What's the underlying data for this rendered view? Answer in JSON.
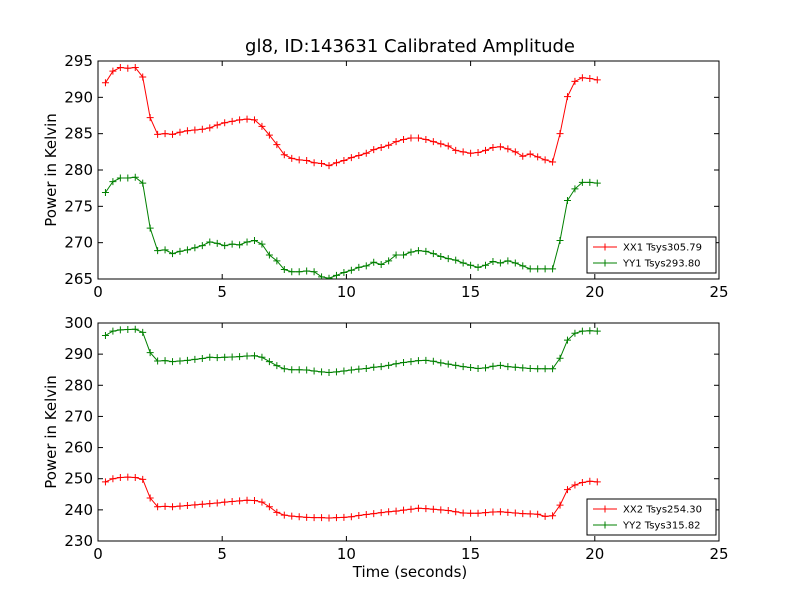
{
  "figure": {
    "title": "gl8, ID:143631 Calibrated Amplitude",
    "xlabel": "Time (seconds)"
  },
  "colors": {
    "red": "#ff0000",
    "green": "#008000"
  },
  "chart_data": [
    {
      "type": "line",
      "title": "gl8, ID:143631 Calibrated Amplitude",
      "xlabel": "",
      "ylabel": "Power in Kelvin",
      "xlim": [
        0,
        25
      ],
      "ylim": [
        265,
        295
      ],
      "xticks": [
        0,
        5,
        10,
        15,
        20,
        25
      ],
      "yticks": [
        265,
        270,
        275,
        280,
        285,
        290,
        295
      ],
      "grid": false,
      "legend_placement": "lower-right",
      "x": [
        0.3,
        0.6,
        0.9,
        1.2,
        1.5,
        1.8,
        2.1,
        2.4,
        2.7,
        3.0,
        3.3,
        3.6,
        3.9,
        4.2,
        4.5,
        4.8,
        5.1,
        5.4,
        5.7,
        6.0,
        6.3,
        6.6,
        6.9,
        7.2,
        7.5,
        7.8,
        8.1,
        8.4,
        8.7,
        9.0,
        9.3,
        9.6,
        9.9,
        10.2,
        10.5,
        10.8,
        11.1,
        11.4,
        11.7,
        12.0,
        12.3,
        12.6,
        12.9,
        13.2,
        13.5,
        13.8,
        14.1,
        14.4,
        14.7,
        15.0,
        15.3,
        15.6,
        15.9,
        16.2,
        16.5,
        16.8,
        17.1,
        17.4,
        17.7,
        18.0,
        18.3,
        18.6,
        18.9,
        19.2,
        19.5,
        19.8,
        20.1
      ],
      "series": [
        {
          "name": "XX1 Tsys305.79",
          "color": "#ff0000",
          "values": [
            292.0,
            293.6,
            294.1,
            294.0,
            294.1,
            292.8,
            287.2,
            284.9,
            285.0,
            284.9,
            285.2,
            285.4,
            285.5,
            285.6,
            285.8,
            286.2,
            286.5,
            286.7,
            286.9,
            287.0,
            286.9,
            286.0,
            284.8,
            283.5,
            282.1,
            281.6,
            281.4,
            281.3,
            281.0,
            280.9,
            280.6,
            281.0,
            281.3,
            281.7,
            282.0,
            282.3,
            282.8,
            283.1,
            283.4,
            283.9,
            284.2,
            284.4,
            284.4,
            284.2,
            283.9,
            283.6,
            283.3,
            282.7,
            282.5,
            282.3,
            282.4,
            282.7,
            283.1,
            283.2,
            282.9,
            282.5,
            281.9,
            282.2,
            281.8,
            281.4,
            281.1,
            285.0,
            290.1,
            292.2,
            292.7,
            292.6,
            292.4
          ]
        },
        {
          "name": "YY1 Tsys293.80",
          "color": "#008000",
          "values": [
            276.9,
            278.4,
            278.9,
            278.9,
            279.0,
            278.2,
            272.0,
            268.9,
            269.0,
            268.5,
            268.8,
            269.0,
            269.3,
            269.6,
            270.1,
            269.9,
            269.6,
            269.8,
            269.7,
            270.1,
            270.3,
            269.8,
            268.3,
            267.5,
            266.3,
            266.0,
            266.0,
            266.1,
            266.0,
            265.3,
            265.1,
            265.5,
            265.9,
            266.2,
            266.6,
            266.8,
            267.3,
            267.0,
            267.5,
            268.3,
            268.3,
            268.7,
            268.9,
            268.8,
            268.5,
            268.1,
            267.8,
            267.6,
            267.2,
            266.9,
            266.6,
            266.9,
            267.4,
            267.2,
            267.5,
            267.2,
            266.8,
            266.4,
            266.4,
            266.4,
            266.4,
            270.3,
            275.8,
            277.4,
            278.3,
            278.3,
            278.2
          ]
        }
      ]
    },
    {
      "type": "line",
      "title": "",
      "xlabel": "Time (seconds)",
      "ylabel": "Power in Kelvin",
      "xlim": [
        0,
        25
      ],
      "ylim": [
        230,
        300
      ],
      "xticks": [
        0,
        5,
        10,
        15,
        20,
        25
      ],
      "yticks": [
        230,
        240,
        250,
        260,
        270,
        280,
        290,
        300
      ],
      "grid": false,
      "legend_placement": "lower-right",
      "x": [
        0.3,
        0.6,
        0.9,
        1.2,
        1.5,
        1.8,
        2.1,
        2.4,
        2.7,
        3.0,
        3.3,
        3.6,
        3.9,
        4.2,
        4.5,
        4.8,
        5.1,
        5.4,
        5.7,
        6.0,
        6.3,
        6.6,
        6.9,
        7.2,
        7.5,
        7.8,
        8.1,
        8.4,
        8.7,
        9.0,
        9.3,
        9.6,
        9.9,
        10.2,
        10.5,
        10.8,
        11.1,
        11.4,
        11.7,
        12.0,
        12.3,
        12.6,
        12.9,
        13.2,
        13.5,
        13.8,
        14.1,
        14.4,
        14.7,
        15.0,
        15.3,
        15.6,
        15.9,
        16.2,
        16.5,
        16.8,
        17.1,
        17.4,
        17.7,
        18.0,
        18.3,
        18.6,
        18.9,
        19.2,
        19.5,
        19.8,
        20.1
      ],
      "series": [
        {
          "name": "XX2 Tsys254.30",
          "color": "#ff0000",
          "values": [
            249.0,
            250.0,
            250.4,
            250.5,
            250.4,
            249.8,
            243.8,
            241.0,
            241.1,
            241.0,
            241.2,
            241.4,
            241.6,
            241.8,
            242.0,
            242.2,
            242.5,
            242.7,
            242.9,
            243.1,
            243.0,
            242.5,
            241.0,
            239.2,
            238.3,
            238.0,
            237.8,
            237.6,
            237.5,
            237.5,
            237.4,
            237.5,
            237.6,
            237.8,
            238.2,
            238.5,
            238.8,
            239.1,
            239.4,
            239.6,
            239.9,
            240.2,
            240.5,
            240.4,
            240.2,
            240.0,
            239.8,
            239.4,
            239.0,
            238.9,
            238.9,
            239.1,
            239.3,
            239.4,
            239.2,
            239.0,
            238.8,
            238.7,
            238.6,
            237.9,
            238.1,
            241.5,
            246.5,
            248.0,
            248.8,
            249.2,
            249.0
          ]
        },
        {
          "name": "YY2 Tsys315.82",
          "color": "#008000",
          "values": [
            296.0,
            297.4,
            297.8,
            297.9,
            298.0,
            297.0,
            290.5,
            287.8,
            287.9,
            287.6,
            287.8,
            288.0,
            288.3,
            288.6,
            289.0,
            288.9,
            289.0,
            289.1,
            289.2,
            289.4,
            289.5,
            289.0,
            287.6,
            286.3,
            285.3,
            285.0,
            285.0,
            284.9,
            284.6,
            284.3,
            284.1,
            284.3,
            284.6,
            284.9,
            285.2,
            285.4,
            285.8,
            286.0,
            286.4,
            286.9,
            287.3,
            287.6,
            287.9,
            288.0,
            287.7,
            287.2,
            286.8,
            286.4,
            286.0,
            285.7,
            285.4,
            285.6,
            286.1,
            286.4,
            286.0,
            285.8,
            285.6,
            285.4,
            285.3,
            285.3,
            285.3,
            288.7,
            294.5,
            296.7,
            297.4,
            297.5,
            297.4
          ]
        }
      ]
    }
  ]
}
